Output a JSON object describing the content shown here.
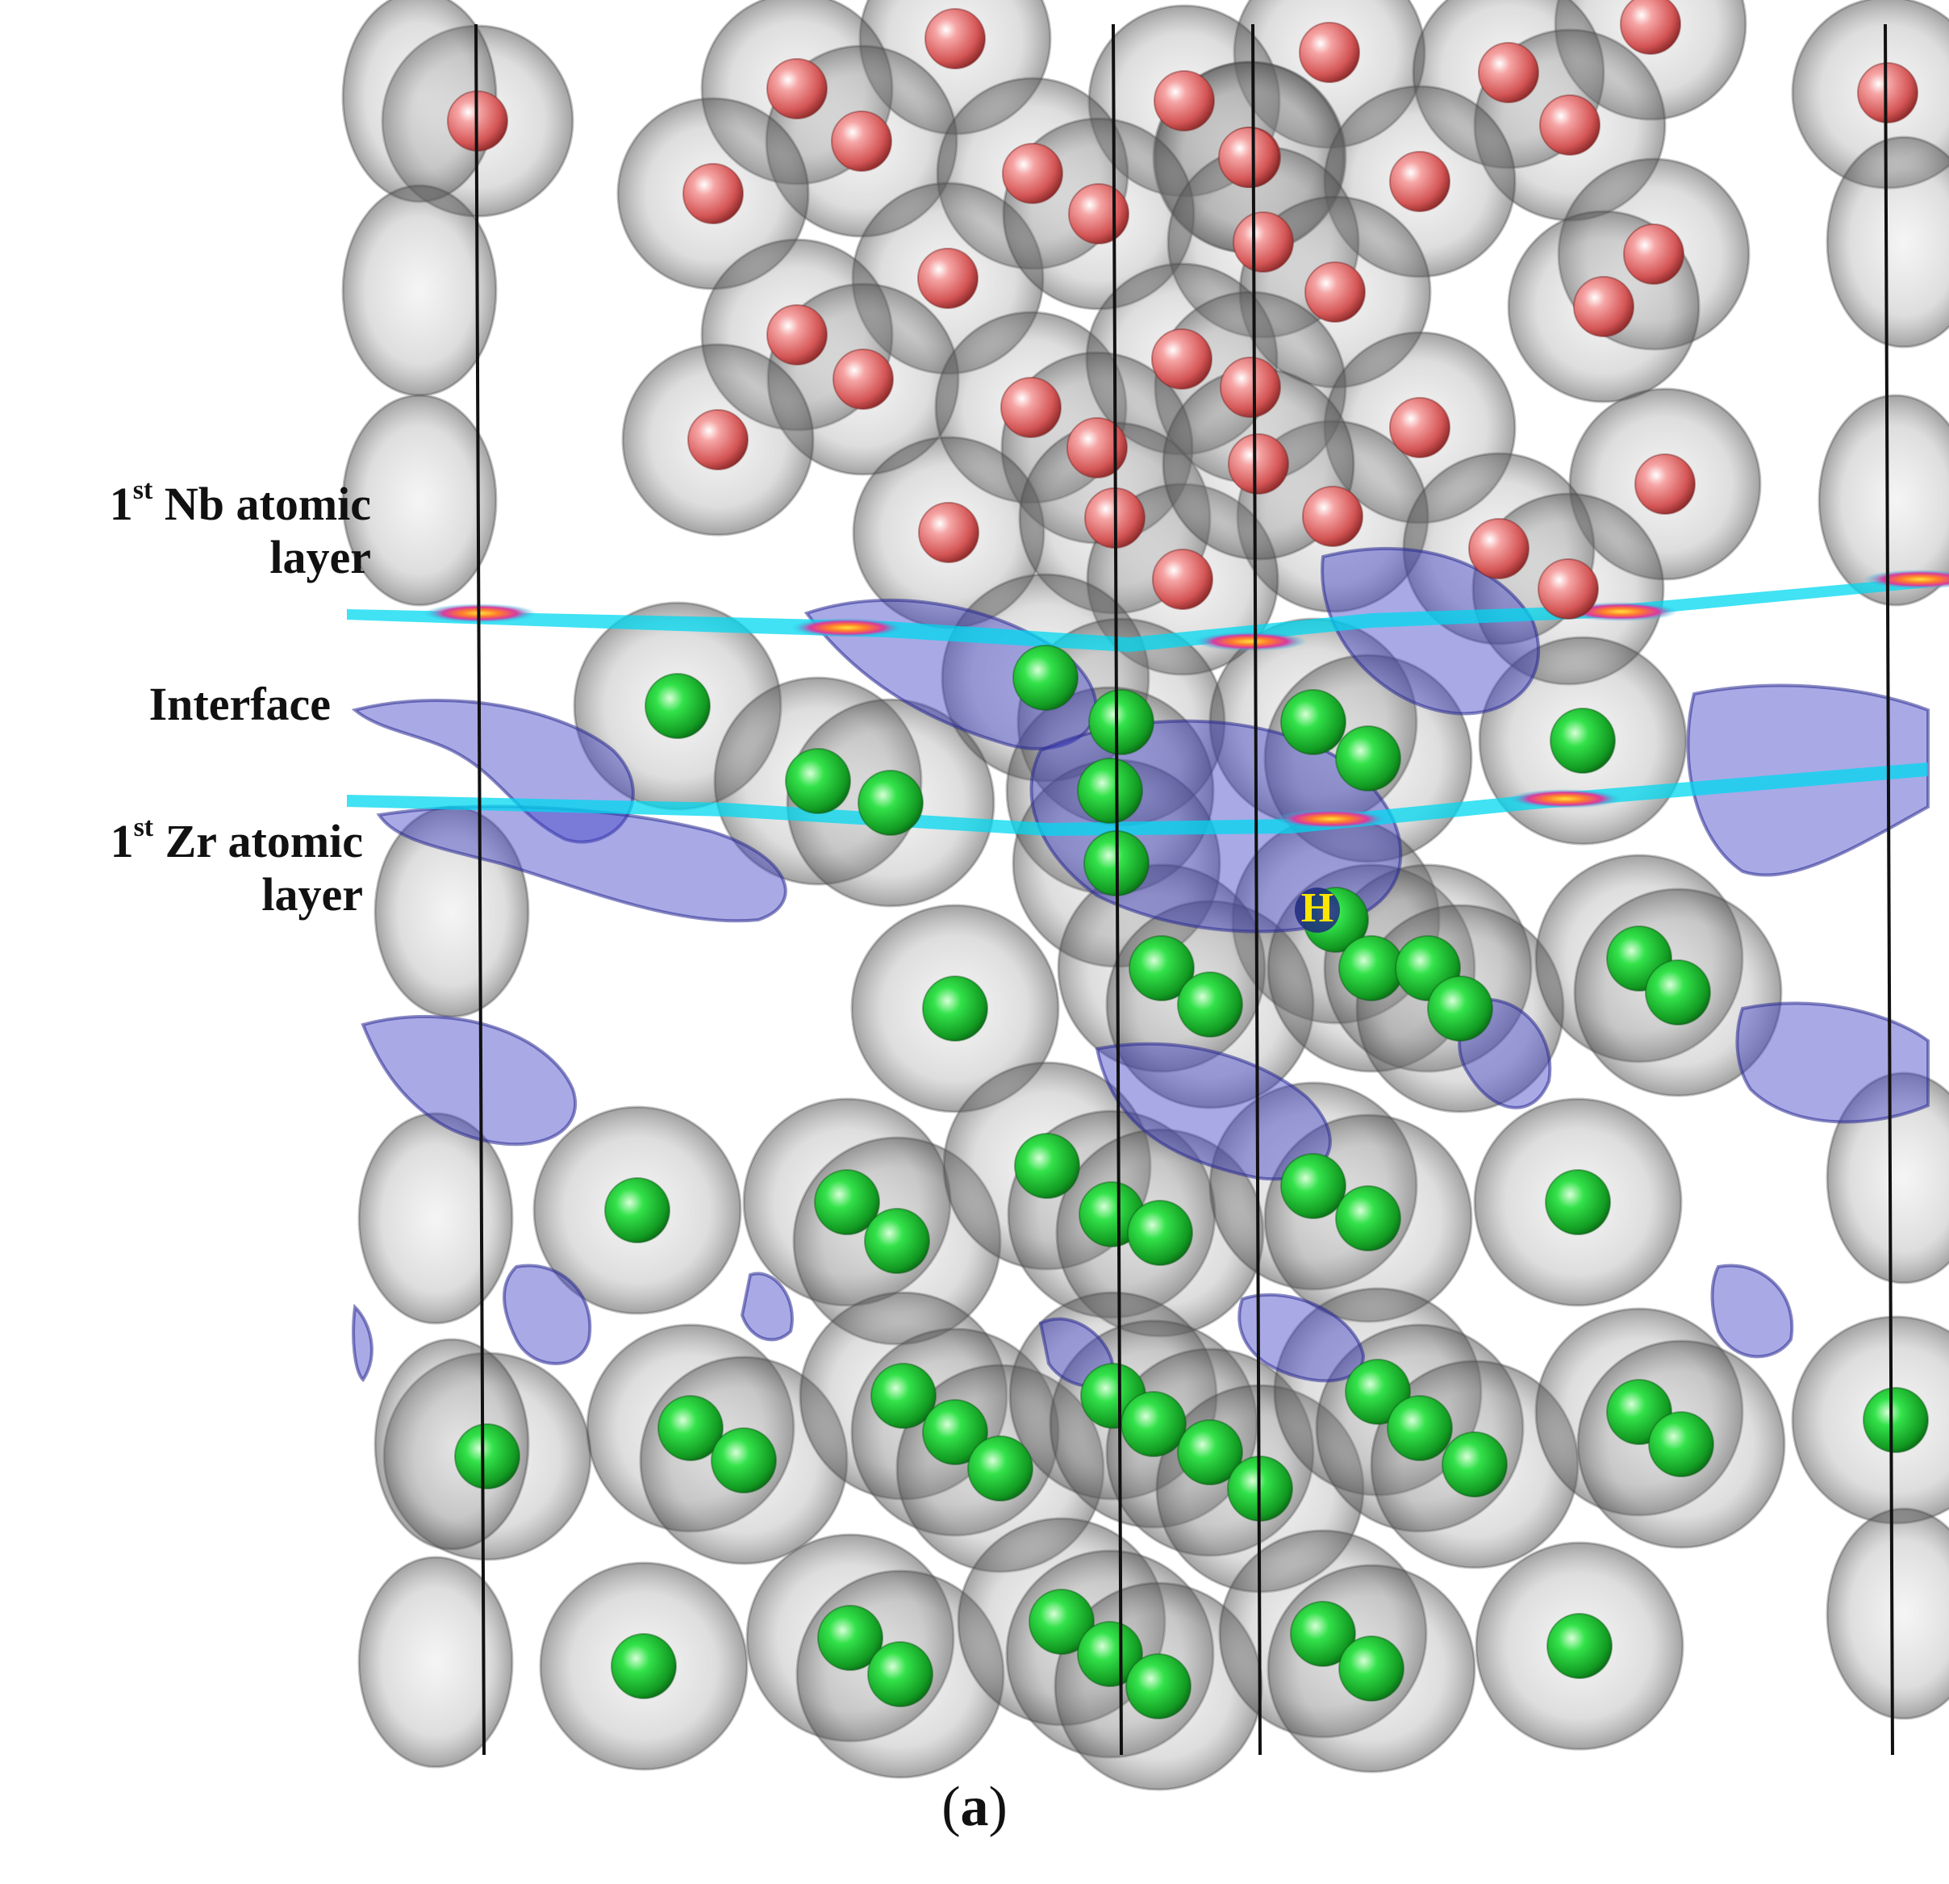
{
  "figure": {
    "labels": {
      "nb_layer": {
        "superscript_prefix": "1",
        "superscript": "st",
        "line1_rest": " Nb atomic",
        "line2": "layer"
      },
      "interface": "Interface",
      "zr_layer": {
        "superscript_prefix": "1",
        "superscript": "st",
        "line1_rest": " Zr atomic",
        "line2": "layer"
      }
    },
    "hydrogen_label": "H",
    "caption": {
      "open": "(",
      "letter": "a",
      "close": ")"
    }
  },
  "colors": {
    "nb_atom": "#e87070",
    "zr_atom": "#22cc33",
    "isosurface_gray": "#808080",
    "charge_depletion": "#4040c8",
    "interface_plane": "#00d8f0",
    "hydrogen_label": "#ffe600",
    "cell_edge": "#111111"
  }
}
